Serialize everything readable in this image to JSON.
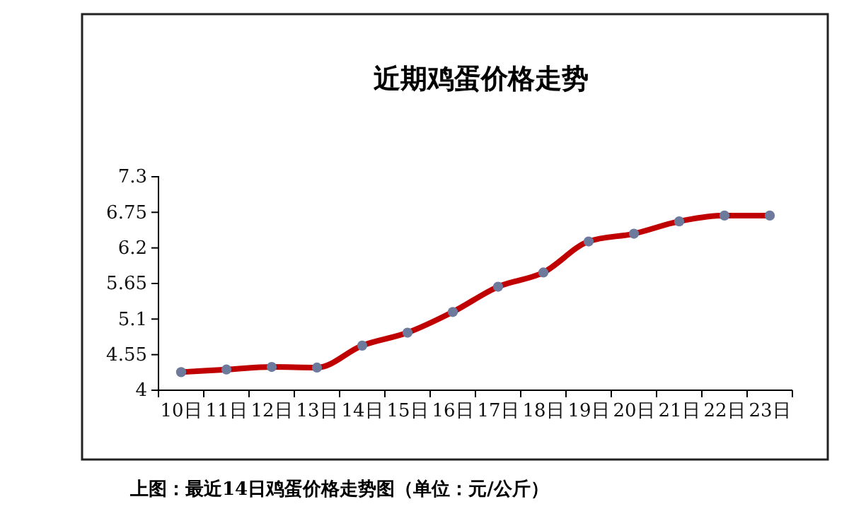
{
  "chart_data": {
    "type": "line",
    "title": "近期鸡蛋价格走势",
    "annotations": [
      "上图：最近14日鸡蛋价格走势图（单位：元/公斤）"
    ],
    "categories": [
      "10日",
      "11日",
      "12日",
      "13日",
      "14日",
      "15日",
      "16日",
      "17日",
      "18日",
      "19日",
      "20日",
      "21日",
      "22日",
      "23日"
    ],
    "series": [
      {
        "color": "#c00000",
        "values": [
          4.28,
          4.32,
          4.36,
          4.35,
          4.69,
          4.89,
          5.21,
          5.6,
          5.82,
          6.3,
          6.42,
          6.61,
          6.7,
          6.7
        ]
      }
    ],
    "ylim": [
      4,
      7.3
    ],
    "yticks": [
      4,
      4.55,
      5.1,
      5.65,
      6.2,
      6.75,
      7.3
    ],
    "marker": "circle",
    "line_style": "solid",
    "grid": false
  }
}
